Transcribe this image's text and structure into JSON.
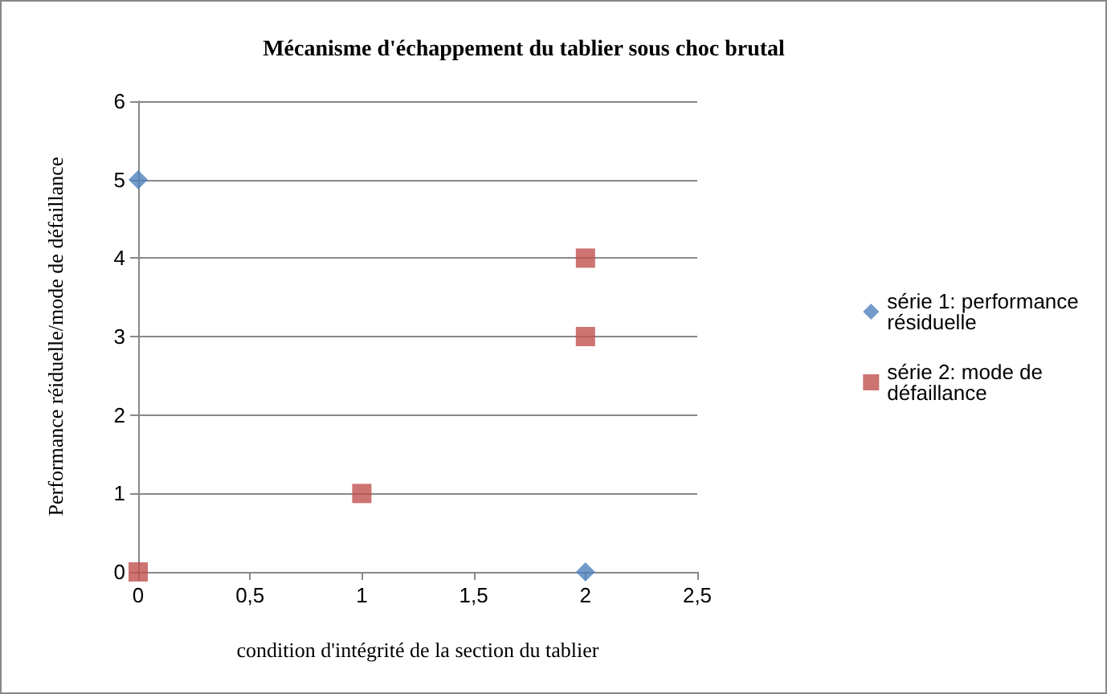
{
  "chart_data": {
    "type": "scatter",
    "title": "Mécanisme d'échappement du tablier sous choc brutal",
    "xlabel": "condition d'intégrité de la section du tablier",
    "ylabel": "Performance réiduelle/mode de défaillance",
    "series": [
      {
        "name": "série 1: performance résiduelle",
        "color": "#4f81bd",
        "marker": "diamond",
        "x": [
          0,
          2
        ],
        "values": [
          5,
          0
        ]
      },
      {
        "name": "série 2: mode de défaillance",
        "color": "#c0504d",
        "marker": "square",
        "x": [
          0,
          1,
          2,
          2
        ],
        "values": [
          0,
          1,
          3,
          4
        ]
      }
    ],
    "xlim": [
      0,
      2.5
    ],
    "xticks": [
      0,
      {
        "value": 0.5,
        "label": "0,5"
      },
      1,
      {
        "value": 1.5,
        "label": "1,5"
      },
      2,
      {
        "value": 2.5,
        "label": "2,5"
      }
    ],
    "ylim": [
      0,
      6
    ],
    "yticks": [
      0,
      1,
      2,
      3,
      4,
      5,
      6
    ],
    "grid": "y",
    "legend": "right"
  }
}
